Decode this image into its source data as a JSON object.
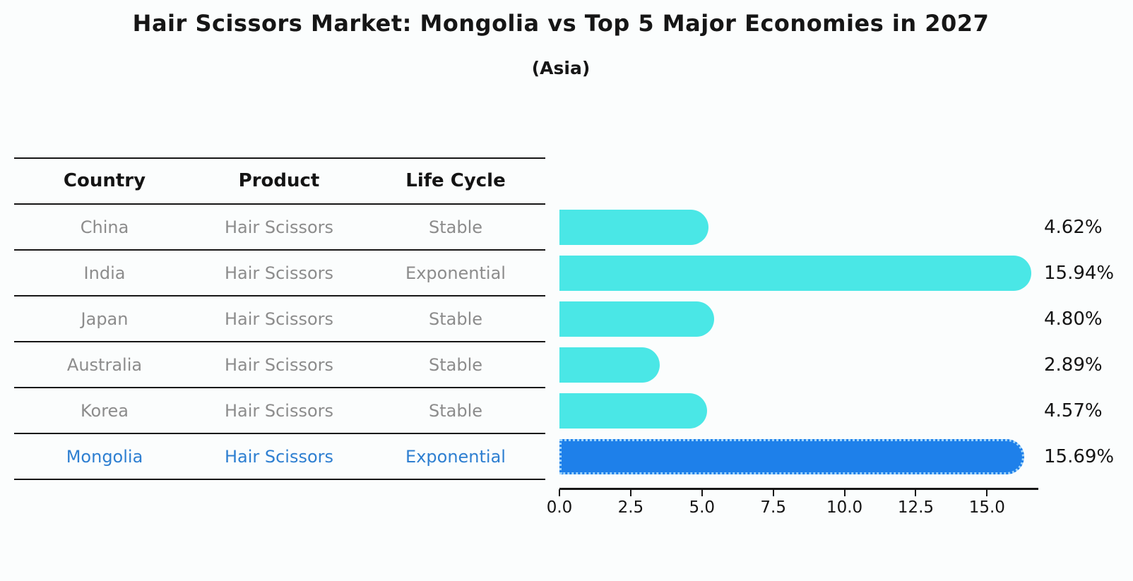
{
  "title": "Hair Scissors Market: Mongolia vs Top 5 Major Economies in 2027",
  "subtitle": "(Asia)",
  "table": {
    "headers": [
      "Country",
      "Product",
      "Life Cycle"
    ],
    "rows": [
      {
        "country": "China",
        "product": "Hair Scissors",
        "life_cycle": "Stable",
        "highlight": false
      },
      {
        "country": "India",
        "product": "Hair Scissors",
        "life_cycle": "Exponential",
        "highlight": false
      },
      {
        "country": "Japan",
        "product": "Hair Scissors",
        "life_cycle": "Stable",
        "highlight": false
      },
      {
        "country": "Australia",
        "product": "Hair Scissors",
        "life_cycle": "Stable",
        "highlight": false
      },
      {
        "country": "Korea",
        "product": "Hair Scissors",
        "life_cycle": "Stable",
        "highlight": false
      },
      {
        "country": "Mongolia",
        "product": "Hair Scissors",
        "life_cycle": "Exponential",
        "highlight": true
      }
    ]
  },
  "chart_data": {
    "type": "bar",
    "orientation": "horizontal",
    "title": "Hair Scissors Market: Mongolia vs Top 5 Major Economies in 2027",
    "subtitle": "(Asia)",
    "categories": [
      "China",
      "India",
      "Japan",
      "Australia",
      "Korea",
      "Mongolia"
    ],
    "values": [
      4.62,
      15.94,
      4.8,
      2.89,
      4.57,
      15.69
    ],
    "value_labels": [
      "4.62%",
      "15.94%",
      "4.80%",
      "2.89%",
      "4.57%",
      "15.69%"
    ],
    "highlight_index": 5,
    "x_ticks": [
      0.0,
      2.5,
      5.0,
      7.5,
      10.0,
      12.5,
      15.0
    ],
    "x_tick_labels": [
      "0.0",
      "2.5",
      "5.0",
      "7.5",
      "10.0",
      "12.5",
      "15.0"
    ],
    "xlim": [
      0,
      16.8
    ],
    "xlabel": "",
    "ylabel": "",
    "grid": false,
    "legend": false,
    "bar_color": "#4ae7e6",
    "highlight_bar_color": "#1e80ea",
    "highlight_text_color": "#2e7fd1",
    "label_color": "#141414"
  }
}
